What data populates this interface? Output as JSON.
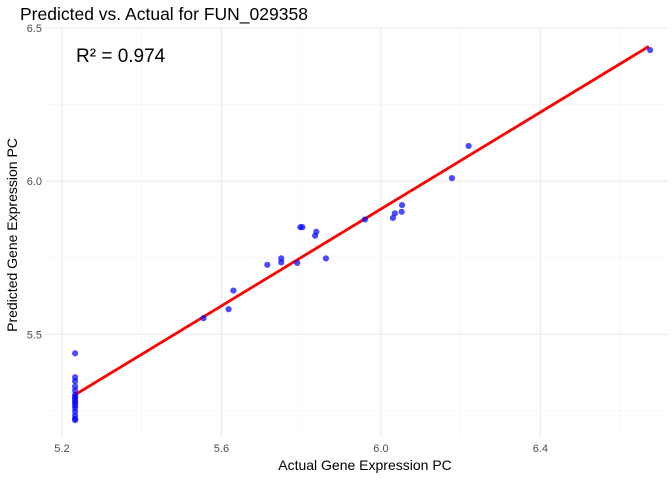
{
  "chart_data": {
    "type": "scatter",
    "title": "Predicted vs. Actual for FUN_029358",
    "xlabel": "Actual Gene Expression PC",
    "ylabel": "Predicted Gene Expression PC",
    "xlim": [
      5.16,
      6.72
    ],
    "ylim": [
      5.165,
      6.5
    ],
    "xticks": [
      {
        "value": 5.2,
        "label": "5.2"
      },
      {
        "value": 5.6,
        "label": "5.6"
      },
      {
        "value": 6.0,
        "label": "6.0"
      },
      {
        "value": 6.4,
        "label": "6.4"
      }
    ],
    "yticks": [
      {
        "value": 5.5,
        "label": "5.5"
      },
      {
        "value": 6.0,
        "label": "6.0"
      },
      {
        "value": 6.5,
        "label": "6.5"
      }
    ],
    "annotation": "R² = 0.974",
    "grid": true,
    "colors": {
      "points": "#0000ff",
      "fit_line": "#ff0000"
    },
    "points": {
      "x": [
        5.233,
        5.233,
        5.233,
        5.233,
        5.233,
        5.233,
        5.233,
        5.233,
        5.233,
        5.233,
        5.233,
        5.233,
        5.233,
        5.233,
        5.233,
        5.233,
        5.555,
        5.618,
        5.63,
        5.715,
        5.75,
        5.75,
        5.79,
        5.798,
        5.803,
        5.835,
        5.838,
        5.862,
        5.96,
        6.03,
        6.035,
        6.052,
        6.053,
        6.178,
        6.22,
        6.675
      ],
      "y": [
        5.438,
        5.36,
        5.347,
        5.33,
        5.317,
        5.303,
        5.29,
        5.282,
        5.277,
        5.26,
        5.248,
        5.235,
        5.225,
        5.22,
        5.268,
        5.295,
        5.553,
        5.582,
        5.643,
        5.727,
        5.735,
        5.748,
        5.733,
        5.85,
        5.85,
        5.822,
        5.835,
        5.748,
        5.875,
        5.88,
        5.895,
        5.9,
        5.922,
        6.01,
        6.115,
        6.428
      ]
    },
    "fit_line": {
      "x": [
        5.233,
        6.672
      ],
      "y": [
        5.303,
        6.44
      ]
    }
  }
}
